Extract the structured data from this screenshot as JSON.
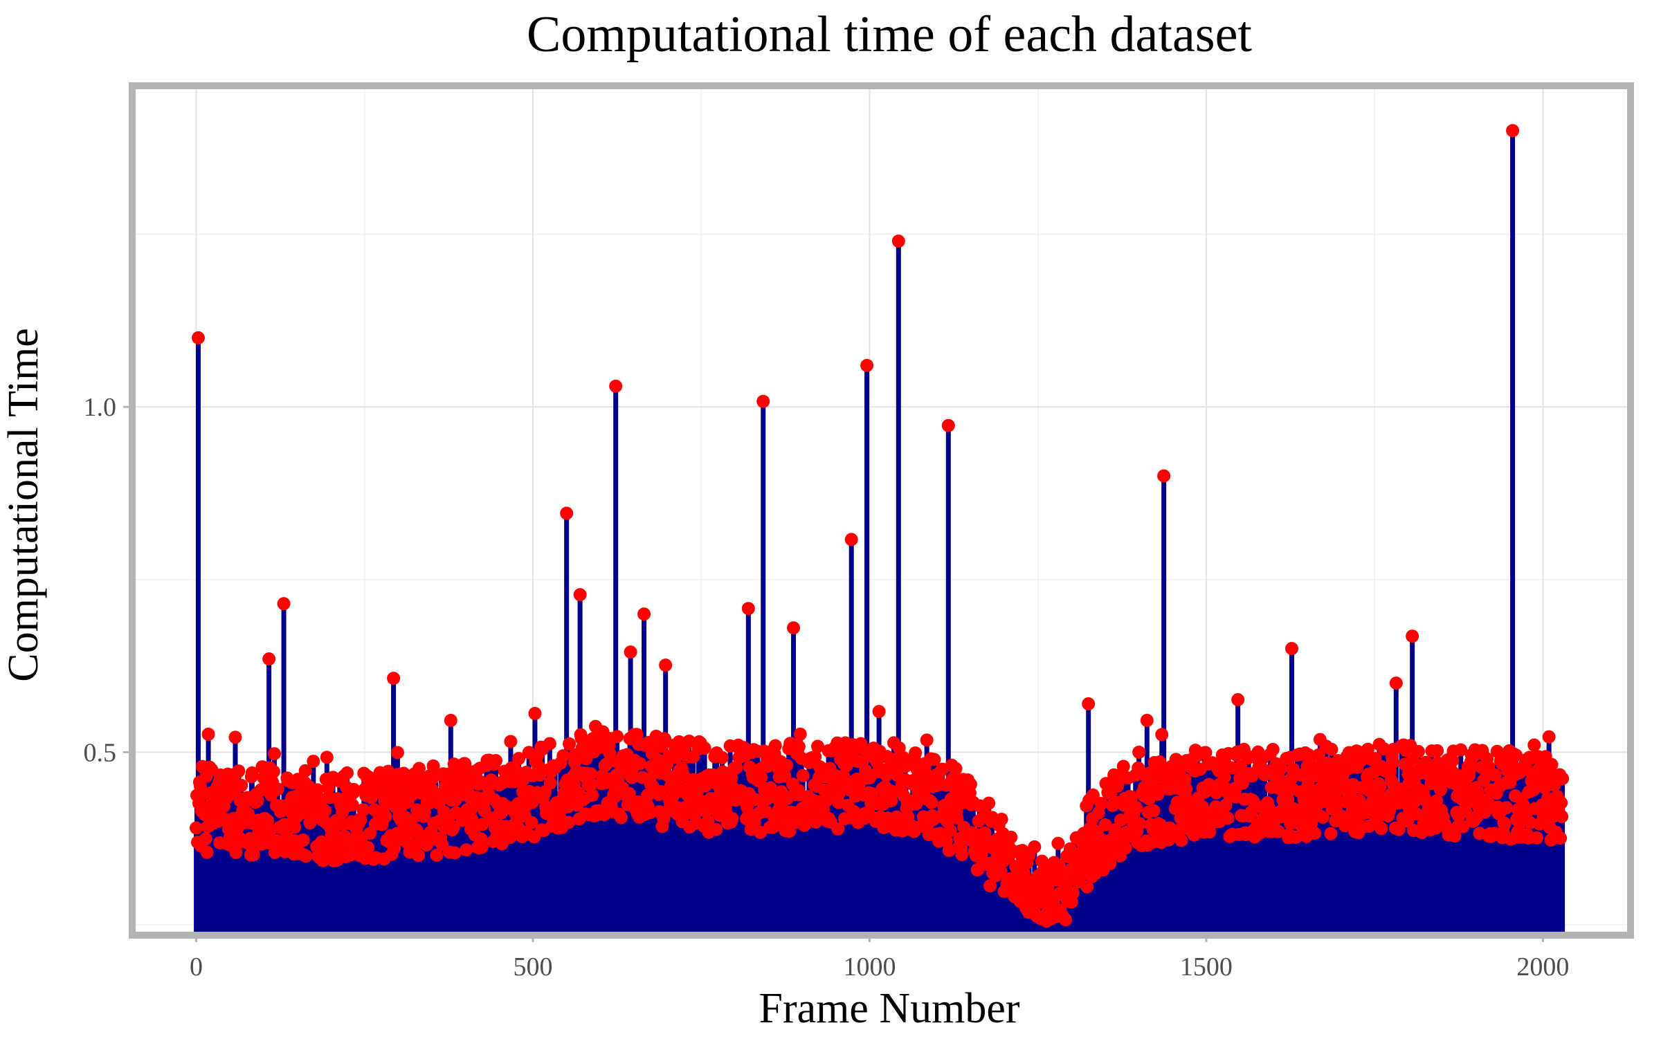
{
  "chart_data": {
    "type": "scatter",
    "title": "Computational time of each dataset",
    "xlabel": "Frame Number",
    "ylabel": "Computational Time",
    "xlim": [
      -90,
      2125
    ],
    "ylim": [
      0.24,
      1.46
    ],
    "x_ticks": [
      0,
      500,
      1000,
      1500,
      2000
    ],
    "y_ticks": [
      0.5,
      1.0
    ],
    "x_tick_labels": [
      "0",
      "500",
      "1000",
      "1500",
      "2000"
    ],
    "y_tick_labels": [
      "0.5",
      "1.0"
    ],
    "grid": true,
    "legend": "none",
    "styles": {
      "stem_color": "#00008b",
      "point_color": "#ff0000",
      "border_color": "#b3b3b3"
    },
    "baseline_profile": [
      [
        0,
        0.42
      ],
      [
        100,
        0.415
      ],
      [
        150,
        0.41
      ],
      [
        200,
        0.405
      ],
      [
        300,
        0.41
      ],
      [
        400,
        0.42
      ],
      [
        500,
        0.44
      ],
      [
        560,
        0.46
      ],
      [
        600,
        0.475
      ],
      [
        650,
        0.465
      ],
      [
        700,
        0.455
      ],
      [
        800,
        0.445
      ],
      [
        900,
        0.45
      ],
      [
        1000,
        0.455
      ],
      [
        1050,
        0.45
      ],
      [
        1100,
        0.43
      ],
      [
        1150,
        0.405
      ],
      [
        1200,
        0.34
      ],
      [
        1250,
        0.3
      ],
      [
        1290,
        0.3
      ],
      [
        1330,
        0.38
      ],
      [
        1380,
        0.42
      ],
      [
        1450,
        0.435
      ],
      [
        1500,
        0.44
      ],
      [
        1600,
        0.44
      ],
      [
        1700,
        0.445
      ],
      [
        1800,
        0.45
      ],
      [
        1900,
        0.44
      ],
      [
        2030,
        0.435
      ]
    ],
    "peaks": [
      {
        "x": 3,
        "y": 1.1
      },
      {
        "x": 108,
        "y": 0.635
      },
      {
        "x": 130,
        "y": 0.715
      },
      {
        "x": 293,
        "y": 0.607
      },
      {
        "x": 378,
        "y": 0.546
      },
      {
        "x": 503,
        "y": 0.556
      },
      {
        "x": 550,
        "y": 0.846
      },
      {
        "x": 570,
        "y": 0.728
      },
      {
        "x": 623,
        "y": 1.03
      },
      {
        "x": 645,
        "y": 0.645
      },
      {
        "x": 665,
        "y": 0.7
      },
      {
        "x": 697,
        "y": 0.626
      },
      {
        "x": 820,
        "y": 0.708
      },
      {
        "x": 842,
        "y": 1.008
      },
      {
        "x": 887,
        "y": 0.68
      },
      {
        "x": 973,
        "y": 0.808
      },
      {
        "x": 996,
        "y": 1.06
      },
      {
        "x": 1043,
        "y": 1.24
      },
      {
        "x": 1117,
        "y": 0.973
      },
      {
        "x": 1325,
        "y": 0.57
      },
      {
        "x": 1412,
        "y": 0.546
      },
      {
        "x": 1437,
        "y": 0.9
      },
      {
        "x": 1547,
        "y": 0.576
      },
      {
        "x": 1627,
        "y": 0.65
      },
      {
        "x": 1782,
        "y": 0.6
      },
      {
        "x": 1806,
        "y": 0.668
      },
      {
        "x": 1955,
        "y": 1.4
      }
    ],
    "n_points": 2030
  }
}
